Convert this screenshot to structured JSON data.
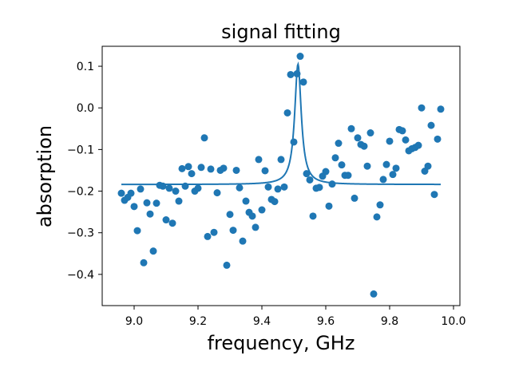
{
  "chart_data": {
    "type": "scatter",
    "title": "signal fitting",
    "xlabel": "frequency, GHz",
    "ylabel": "absorption",
    "xlim": [
      8.9,
      10.02
    ],
    "ylim": [
      -0.475,
      0.148
    ],
    "xticks": [
      9.0,
      9.2,
      9.4,
      9.6,
      9.8,
      10.0
    ],
    "xtick_labels": [
      "9.0",
      "9.2",
      "9.4",
      "9.6",
      "9.8",
      "10.0"
    ],
    "yticks": [
      -0.4,
      -0.3,
      -0.2,
      -0.1,
      0.0,
      0.1
    ],
    "ytick_labels": [
      "−0.4",
      "−0.3",
      "−0.2",
      "−0.1",
      "0.0",
      "0.1"
    ],
    "grid": false,
    "color": "#1f77b4",
    "series": [
      {
        "kind": "scatter",
        "x": [
          8.96,
          8.97,
          8.98,
          8.99,
          9.0,
          9.01,
          9.02,
          9.03,
          9.04,
          9.05,
          9.06,
          9.07,
          9.08,
          9.09,
          9.1,
          9.11,
          9.12,
          9.13,
          9.14,
          9.15,
          9.16,
          9.17,
          9.18,
          9.19,
          9.2,
          9.21,
          9.22,
          9.23,
          9.24,
          9.25,
          9.26,
          9.27,
          9.28,
          9.29,
          9.3,
          9.31,
          9.32,
          9.33,
          9.34,
          9.35,
          9.36,
          9.37,
          9.38,
          9.39,
          9.4,
          9.41,
          9.42,
          9.43,
          9.44,
          9.45,
          9.46,
          9.47,
          9.48,
          9.49,
          9.5,
          9.51,
          9.52,
          9.53,
          9.54,
          9.55,
          9.56,
          9.57,
          9.58,
          9.59,
          9.6,
          9.61,
          9.62,
          9.63,
          9.64,
          9.65,
          9.66,
          9.67,
          9.68,
          9.69,
          9.7,
          9.71,
          9.72,
          9.73,
          9.74,
          9.75,
          9.76,
          9.77,
          9.78,
          9.79,
          9.8,
          9.81,
          9.82,
          9.83,
          9.84,
          9.85,
          9.86,
          9.87,
          9.88,
          9.89,
          9.9,
          9.91,
          9.92,
          9.93,
          9.94,
          9.95,
          9.96
        ],
        "y": [
          -0.205,
          -0.222,
          -0.215,
          -0.205,
          -0.237,
          -0.295,
          -0.195,
          -0.372,
          -0.228,
          -0.255,
          -0.344,
          -0.229,
          -0.186,
          -0.188,
          -0.269,
          -0.193,
          -0.277,
          -0.2,
          -0.224,
          -0.146,
          -0.188,
          -0.141,
          -0.158,
          -0.2,
          -0.193,
          -0.143,
          -0.072,
          -0.309,
          -0.147,
          -0.299,
          -0.204,
          -0.15,
          -0.145,
          -0.378,
          -0.256,
          -0.294,
          -0.15,
          -0.192,
          -0.32,
          -0.224,
          -0.251,
          -0.26,
          -0.287,
          -0.124,
          -0.245,
          -0.151,
          -0.19,
          -0.22,
          -0.225,
          -0.195,
          -0.124,
          -0.19,
          -0.012,
          0.08,
          -0.082,
          0.082,
          0.124,
          0.062,
          -0.158,
          -0.173,
          -0.26,
          -0.193,
          -0.191,
          -0.164,
          -0.153,
          -0.236,
          -0.183,
          -0.12,
          -0.085,
          -0.137,
          -0.162,
          -0.162,
          -0.05,
          -0.217,
          -0.072,
          -0.088,
          -0.092,
          -0.14,
          -0.06,
          -0.447,
          -0.262,
          -0.233,
          -0.172,
          -0.136,
          -0.08,
          -0.16,
          -0.145,
          -0.052,
          -0.055,
          -0.077,
          -0.103,
          -0.098,
          -0.095,
          -0.09,
          0.0,
          -0.152,
          -0.14,
          -0.042,
          -0.208,
          -0.075,
          -0.003
        ]
      },
      {
        "kind": "line",
        "model": "lorentzian",
        "baseline": -0.184,
        "amplitude": 0.289,
        "center": 9.513,
        "hwhm": 0.0125,
        "x_range": [
          8.96,
          9.96
        ]
      }
    ]
  }
}
